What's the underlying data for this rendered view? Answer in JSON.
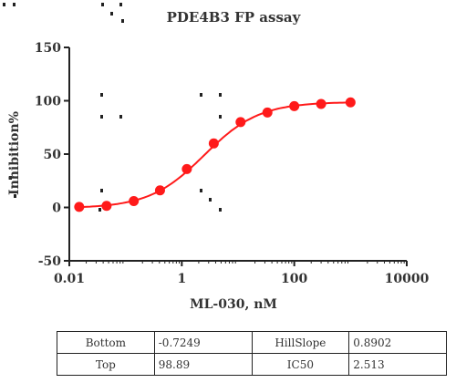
{
  "chart_data": {
    "type": "scatter",
    "title": "PDE4B3 FP assay",
    "xlabel": "ML-030, nM",
    "ylabel": "Inhibition%",
    "xscale": "log",
    "xlim": [
      0.01,
      10000
    ],
    "ylim": [
      -50,
      150
    ],
    "xticks": [
      {
        "value": 0.01,
        "label": "0.01"
      },
      {
        "value": 1,
        "label": "1"
      },
      {
        "value": 100,
        "label": "100"
      },
      {
        "value": 10000,
        "label": "10000"
      }
    ],
    "yticks": [
      {
        "value": -50,
        "label": "-50"
      },
      {
        "value": 0,
        "label": "0"
      },
      {
        "value": 50,
        "label": "50"
      },
      {
        "value": 100,
        "label": "100"
      },
      {
        "value": 150,
        "label": "150"
      }
    ],
    "series": [
      {
        "color": "#ff1a1a",
        "x": [
          0.015,
          0.046,
          0.14,
          0.41,
          1.23,
          3.7,
          11.1,
          33.3,
          100,
          300,
          1000
        ],
        "y": [
          0.5,
          1.5,
          6,
          16,
          36,
          60,
          80,
          89,
          95,
          97,
          98.5
        ]
      }
    ],
    "fit": {
      "model": "four-parameter logistic",
      "color": "#ff1a1a",
      "bottom": -0.7249,
      "top": 98.89,
      "hillslope": 0.8902,
      "ic50": 2.513
    },
    "grid": false,
    "legend": "none"
  },
  "params_table": {
    "rows": [
      [
        "Bottom",
        "-0.7249",
        "HillSlope",
        "0.8902"
      ],
      [
        "Top",
        "98.89",
        "IC50",
        "2.513"
      ]
    ]
  }
}
